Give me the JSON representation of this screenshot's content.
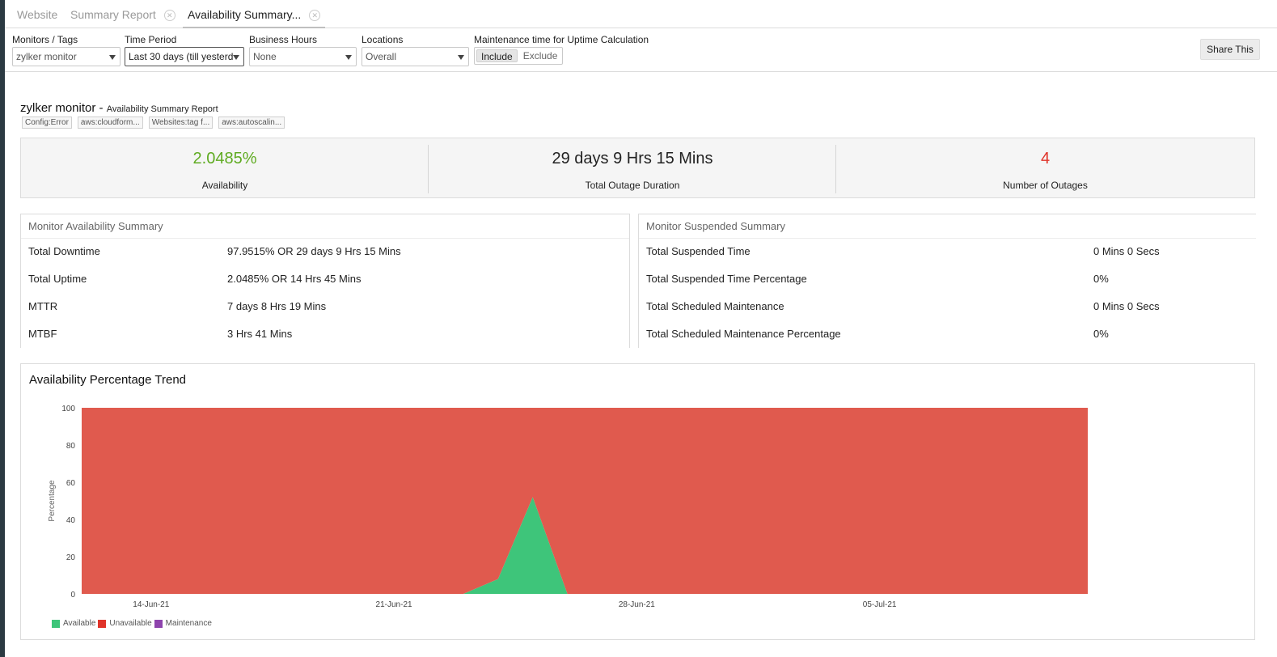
{
  "tabs": [
    {
      "label": "Website",
      "closable": false,
      "active": false
    },
    {
      "label": "Summary Report",
      "closable": true,
      "active": false
    },
    {
      "label": "Availability Summary...",
      "closable": true,
      "active": true
    }
  ],
  "filters": {
    "monitors": {
      "label": "Monitors / Tags",
      "value": "zylker monitor"
    },
    "time_period": {
      "label": "Time Period",
      "value": "Last 30 days (till yesterd"
    },
    "business_hours": {
      "label": "Business Hours",
      "value": "None"
    },
    "locations": {
      "label": "Locations",
      "value": "Overall"
    },
    "maintenance": {
      "label": "Maintenance time for Uptime Calculation",
      "include": "Include",
      "exclude": "Exclude"
    },
    "share_label": "Share This"
  },
  "report": {
    "title": "zylker monitor - ",
    "subtitle": "Availability Summary Report",
    "tags": [
      "Config:Error",
      "aws:cloudform...",
      "Websites:tag f...",
      "aws:autoscalin..."
    ]
  },
  "stats": {
    "availability": {
      "value": "2.0485%",
      "label": "Availability",
      "color": "#5fab21"
    },
    "outage_duration": {
      "value": "29 days 9 Hrs 15 Mins",
      "label": "Total Outage Duration"
    },
    "outages": {
      "value": "4",
      "label": "Number of Outages",
      "color": "#e0342a"
    }
  },
  "availability_summary": {
    "title": "Monitor Availability Summary",
    "rows": [
      {
        "label": "Total Downtime",
        "value": "97.9515% OR 29 days 9 Hrs 15 Mins"
      },
      {
        "label": "Total Uptime",
        "value": "2.0485% OR 14 Hrs 45 Mins"
      },
      {
        "label": "MTTR",
        "value": "7 days 8 Hrs 19 Mins"
      },
      {
        "label": "MTBF",
        "value": "3 Hrs 41 Mins"
      }
    ]
  },
  "suspended_summary": {
    "title": "Monitor Suspended Summary",
    "rows": [
      {
        "label": "Total Suspended Time",
        "value": "0 Mins 0 Secs"
      },
      {
        "label": "Total Suspended Time Percentage",
        "value": "0%"
      },
      {
        "label": "Total Scheduled Maintenance",
        "value": "0 Mins 0 Secs"
      },
      {
        "label": "Total Scheduled Maintenance Percentage",
        "value": "0%"
      }
    ]
  },
  "chart": {
    "title": "Availability Percentage Trend"
  },
  "chart_data": {
    "type": "area",
    "title": "Availability Percentage Trend",
    "ylabel": "Percentage",
    "xlabel": "",
    "ylim": [
      0,
      100
    ],
    "yticks": [
      0,
      20,
      40,
      60,
      80,
      100
    ],
    "xticks": [
      "14-Jun-21",
      "21-Jun-21",
      "28-Jun-21",
      "05-Jul-21"
    ],
    "x_range": [
      "2021-06-12",
      "2021-07-11"
    ],
    "x": [
      "2021-06-12",
      "2021-06-13",
      "2021-06-14",
      "2021-06-15",
      "2021-06-16",
      "2021-06-17",
      "2021-06-18",
      "2021-06-19",
      "2021-06-20",
      "2021-06-21",
      "2021-06-22",
      "2021-06-23",
      "2021-06-24",
      "2021-06-25",
      "2021-06-26",
      "2021-06-27",
      "2021-06-28",
      "2021-06-29",
      "2021-06-30",
      "2021-07-01",
      "2021-07-02",
      "2021-07-03",
      "2021-07-04",
      "2021-07-05",
      "2021-07-06",
      "2021-07-07",
      "2021-07-08",
      "2021-07-09",
      "2021-07-10",
      "2021-07-11"
    ],
    "series": [
      {
        "name": "Available",
        "color": "#3ec57a",
        "values": [
          0,
          0,
          0,
          0,
          0,
          0,
          0,
          0,
          0,
          0,
          0,
          0,
          8,
          52,
          0,
          0,
          0,
          0,
          0,
          0,
          0,
          0,
          0,
          0,
          0,
          0,
          0,
          0,
          0,
          0
        ]
      },
      {
        "name": "Unavailable",
        "color": "#e05a4e",
        "values": [
          100,
          100,
          100,
          100,
          100,
          100,
          100,
          100,
          100,
          100,
          100,
          100,
          92,
          48,
          100,
          100,
          100,
          100,
          100,
          100,
          100,
          100,
          100,
          100,
          100,
          100,
          100,
          100,
          100,
          100
        ]
      },
      {
        "name": "Maintenance",
        "color": "#8e44ad",
        "values": [
          0,
          0,
          0,
          0,
          0,
          0,
          0,
          0,
          0,
          0,
          0,
          0,
          0,
          0,
          0,
          0,
          0,
          0,
          0,
          0,
          0,
          0,
          0,
          0,
          0,
          0,
          0,
          0,
          0,
          0
        ]
      }
    ],
    "grid": false,
    "legend": "bottom-left"
  }
}
